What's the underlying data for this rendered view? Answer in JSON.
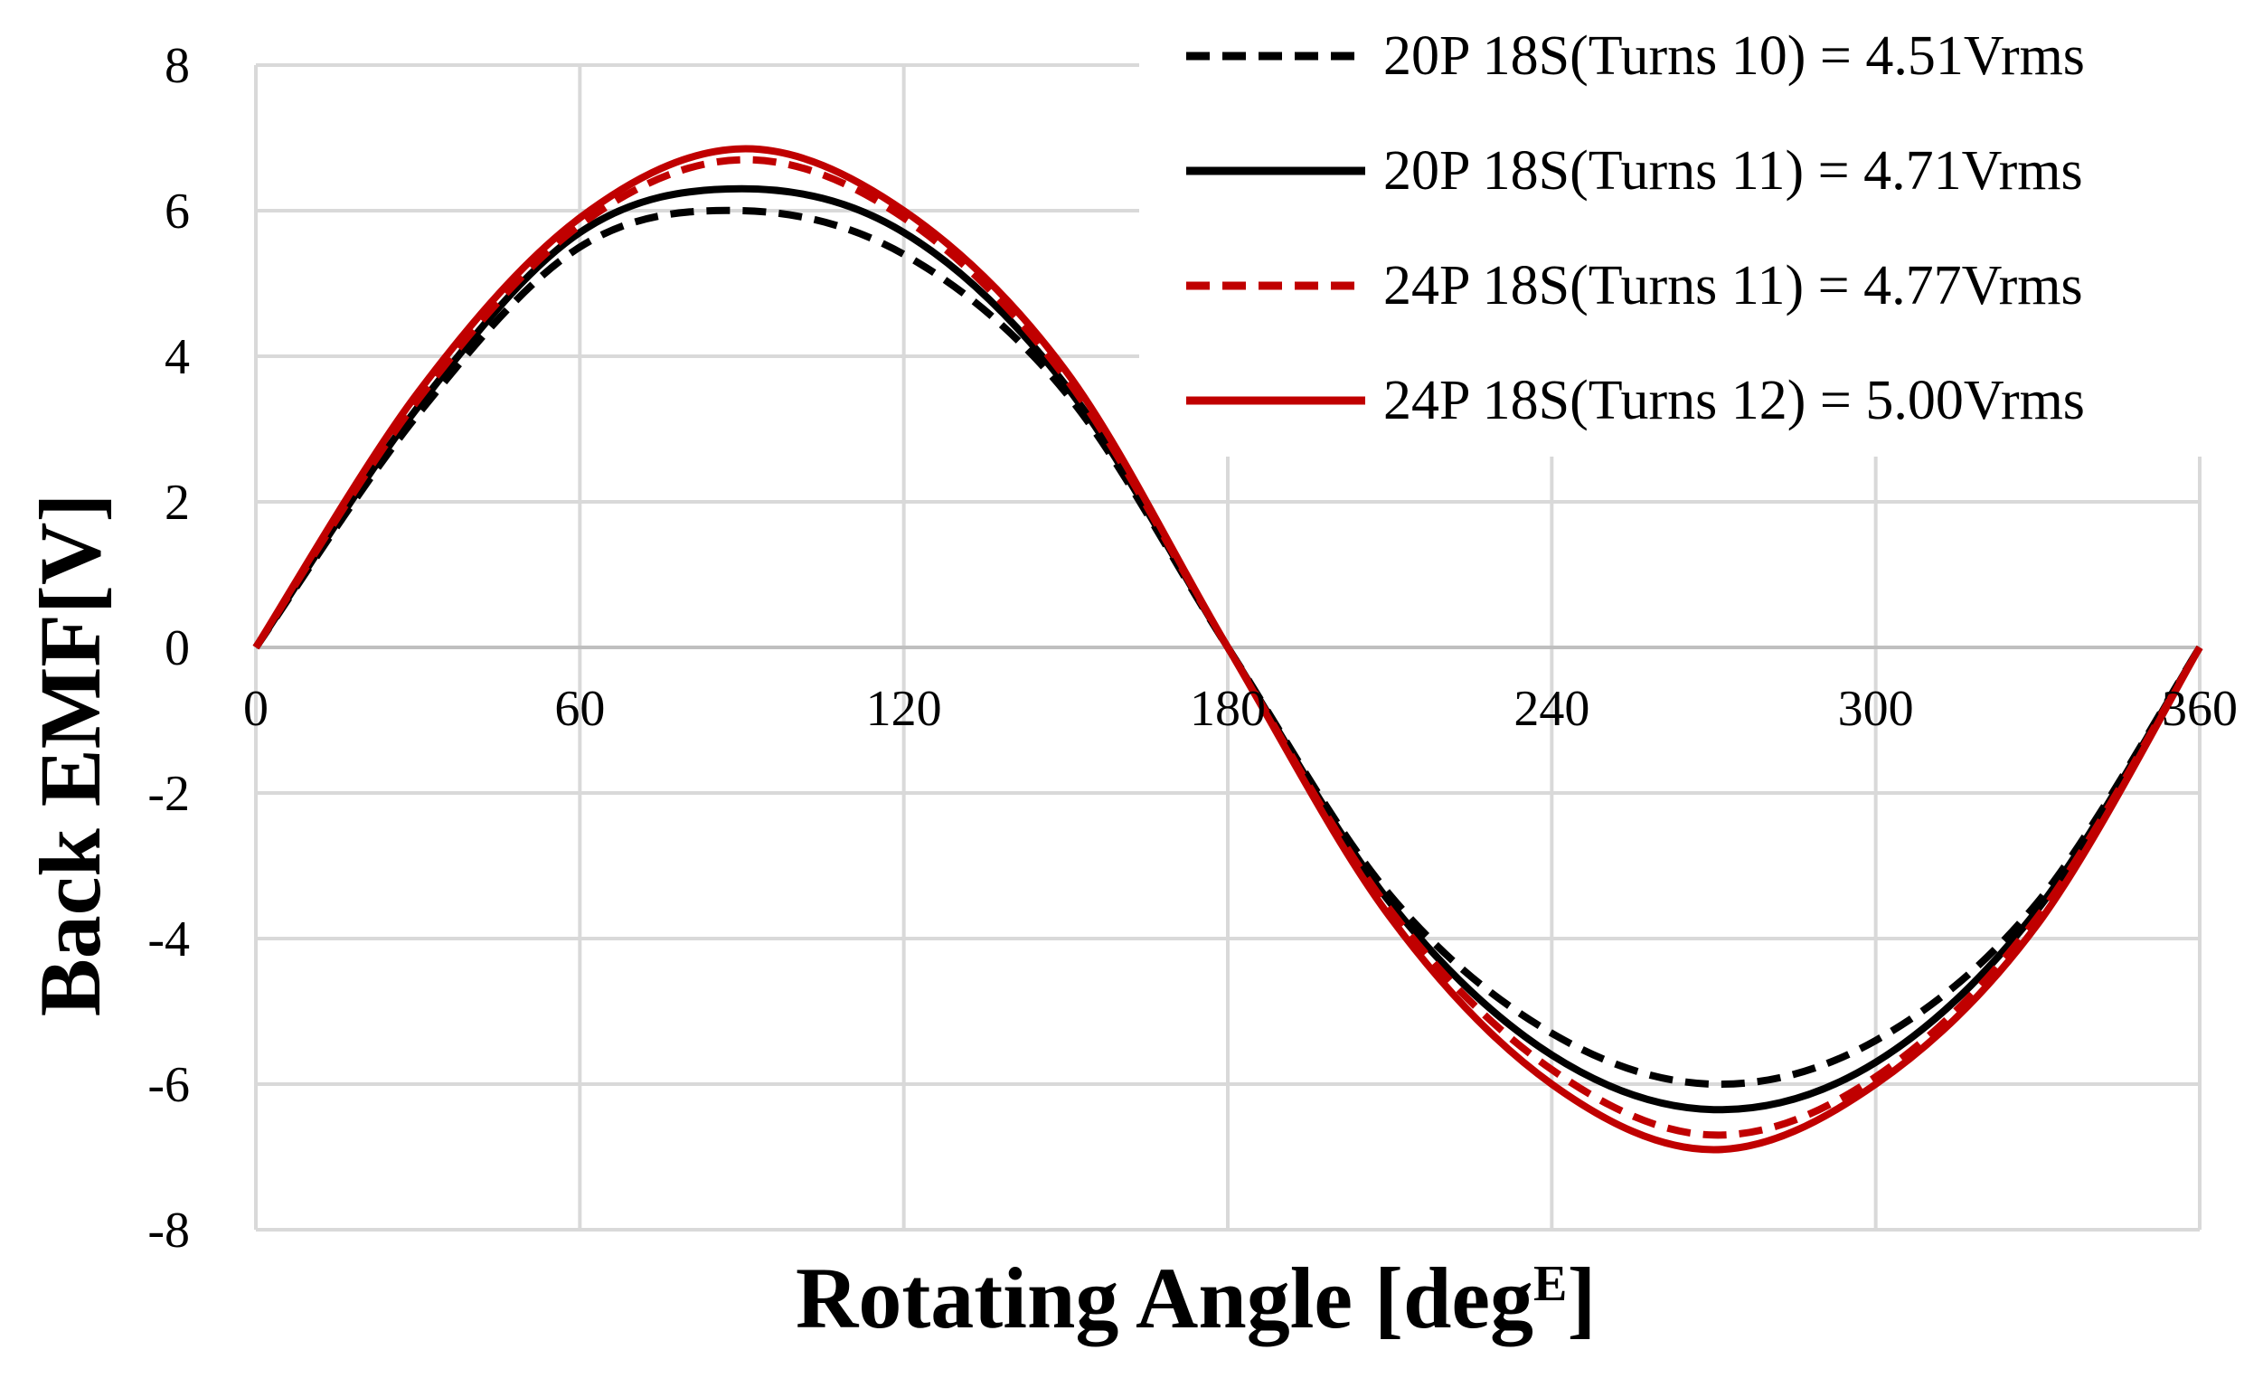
{
  "chart_data": {
    "type": "line",
    "title": "",
    "xlabel": "Rotating Angle [deg",
    "xlabel_superscript": "E",
    "xlabel_close": "]",
    "ylabel": "Back EMF[V]",
    "xlim": [
      0,
      360
    ],
    "ylim": [
      -8,
      8
    ],
    "x_ticks": [
      0,
      60,
      120,
      180,
      240,
      300,
      360
    ],
    "y_ticks": [
      8,
      6,
      4,
      2,
      0,
      -2,
      -4,
      -6,
      -8
    ],
    "x_tick_labels": [
      "0",
      "60",
      "120",
      "180",
      "240",
      "300",
      "360"
    ],
    "y_tick_labels": [
      "8",
      "6",
      "4",
      "2",
      "0",
      "-2",
      "-4",
      "-6",
      "-8"
    ],
    "grid": true,
    "legend_position": "top-right",
    "x": [
      0,
      30,
      60,
      90,
      120,
      150,
      180,
      210,
      240,
      270,
      300,
      330,
      360
    ],
    "series": [
      {
        "name": "20P 18S(Turns 10) = 4.51Vrms",
        "color": "#000000",
        "dash": "dashed",
        "values": [
          0,
          3.2,
          5.5,
          6.0,
          5.4,
          3.5,
          0,
          -3.4,
          -5.3,
          -6.0,
          -5.4,
          -3.5,
          0
        ]
      },
      {
        "name": "20P 18S(Turns 11) = 4.71Vrms",
        "color": "#000000",
        "dash": "solid",
        "values": [
          0,
          3.3,
          5.7,
          6.3,
          5.7,
          3.6,
          0,
          -3.5,
          -5.6,
          -6.35,
          -5.7,
          -3.6,
          0
        ]
      },
      {
        "name": "24P 18S(Turns 11) = 4.77Vrms",
        "color": "#c00000",
        "dash": "dashed",
        "values": [
          0,
          3.4,
          5.8,
          6.7,
          5.9,
          3.7,
          0,
          -3.6,
          -5.8,
          -6.7,
          -5.9,
          -3.7,
          0
        ]
      },
      {
        "name": "24P 18S(Turns 12) = 5.00Vrms",
        "color": "#c00000",
        "dash": "solid",
        "values": [
          0,
          3.5,
          5.9,
          6.85,
          6.0,
          3.8,
          0,
          -3.7,
          -6.0,
          -6.9,
          -6.0,
          -3.8,
          0
        ]
      }
    ]
  }
}
